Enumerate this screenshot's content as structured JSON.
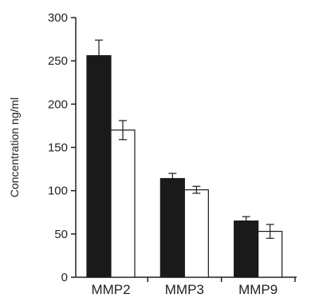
{
  "chart_data": {
    "type": "bar",
    "title": "",
    "xlabel": "",
    "ylabel": "Concentration ng/ml",
    "ylim": [
      0,
      300
    ],
    "yticks": [
      "0",
      "50",
      "100",
      "150",
      "200",
      "250",
      "300"
    ],
    "categories": [
      "MMP2",
      "MMP3",
      "MMP9"
    ],
    "series": [
      {
        "fill": "#1a1a1a",
        "values": [
          256,
          114,
          65
        ],
        "errors": [
          18,
          6,
          5
        ]
      },
      {
        "fill": "#ffffff",
        "values": [
          170,
          101,
          53
        ],
        "errors": [
          11,
          4,
          8
        ]
      }
    ],
    "grid": false,
    "legend": "none"
  }
}
